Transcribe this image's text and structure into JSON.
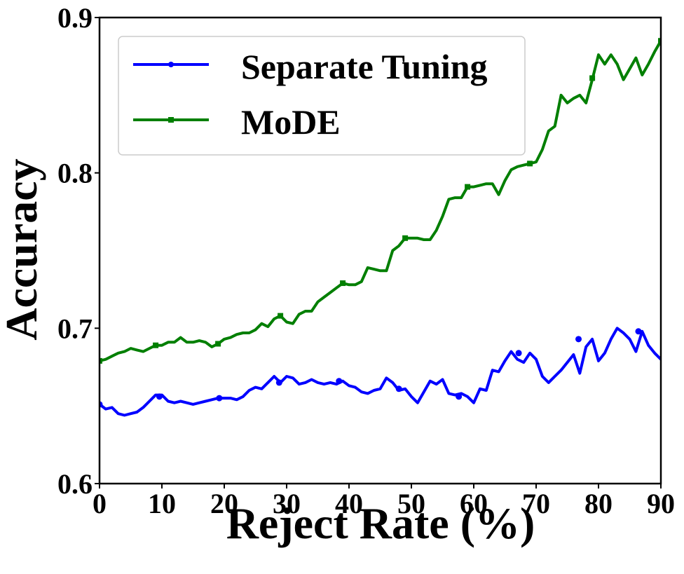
{
  "chart_data": {
    "type": "line",
    "title": "",
    "xlabel": "Reject Rate (%)",
    "ylabel": "Accuracy",
    "xlim": [
      0,
      90
    ],
    "ylim": [
      0.6,
      0.9
    ],
    "xticks": [
      0,
      10,
      20,
      30,
      40,
      50,
      60,
      70,
      80,
      90
    ],
    "xtick_labels": [
      "0",
      "10",
      "20",
      "30",
      "40",
      "50",
      "60",
      "70",
      "80",
      "90"
    ],
    "yticks": [
      0.6,
      0.7,
      0.8,
      0.9
    ],
    "ytick_labels": [
      "0.6",
      "0.7",
      "0.8",
      "0.9"
    ],
    "grid": false,
    "legend_position": "top-left",
    "series": [
      {
        "name": "Separate Tuning",
        "color": "#0000ff",
        "marker": "circle",
        "x": [
          0,
          1,
          2,
          3,
          4,
          5,
          6,
          7,
          8,
          9,
          10,
          11,
          12,
          13,
          14,
          15,
          16,
          17,
          18,
          19,
          20,
          21,
          22,
          23,
          24,
          25,
          26,
          27,
          28,
          29,
          30,
          31,
          32,
          33,
          34,
          35,
          36,
          37,
          38,
          39,
          40,
          41,
          42,
          43,
          44,
          45,
          46,
          47,
          48,
          49,
          50,
          51,
          52,
          53,
          54,
          55,
          56,
          57,
          58,
          59,
          60,
          61,
          62,
          63,
          64,
          65,
          66,
          67,
          68,
          69,
          70,
          71,
          72,
          73,
          74,
          75,
          76,
          77,
          78,
          79,
          80,
          81,
          82,
          83,
          84,
          85,
          86,
          87,
          88,
          89,
          90
        ],
        "values": [
          0.651,
          0.648,
          0.649,
          0.645,
          0.644,
          0.645,
          0.646,
          0.649,
          0.653,
          0.657,
          0.657,
          0.653,
          0.652,
          0.653,
          0.652,
          0.651,
          0.652,
          0.653,
          0.654,
          0.655,
          0.655,
          0.655,
          0.654,
          0.656,
          0.66,
          0.662,
          0.661,
          0.665,
          0.669,
          0.665,
          0.669,
          0.668,
          0.664,
          0.665,
          0.667,
          0.665,
          0.664,
          0.665,
          0.664,
          0.666,
          0.663,
          0.662,
          0.659,
          0.658,
          0.66,
          0.661,
          0.668,
          0.665,
          0.66,
          0.661,
          0.656,
          0.652,
          0.659,
          0.666,
          0.664,
          0.667,
          0.658,
          0.657,
          0.658,
          0.656,
          0.652,
          0.661,
          0.66,
          0.673,
          0.672,
          0.679,
          0.685,
          0.68,
          0.678,
          0.684,
          0.68,
          0.669,
          0.665,
          0.669,
          0.673,
          0.678,
          0.683,
          0.671,
          0.688,
          0.693,
          0.679,
          0.684,
          0.693,
          0.7,
          0.697,
          0.693,
          0.685,
          0.698,
          0.689,
          0.684,
          0.68
        ],
        "markers_x": [
          0,
          9.6,
          19.2,
          28.8,
          38.4,
          48,
          57.6,
          67.2,
          76.8,
          86.4
        ],
        "markers_y": [
          0.651,
          0.656,
          0.655,
          0.665,
          0.666,
          0.661,
          0.656,
          0.684,
          0.693,
          0.698
        ]
      },
      {
        "name": "MoDE",
        "color": "#007f00",
        "marker": "square",
        "x": [
          0,
          1,
          2,
          3,
          4,
          5,
          6,
          7,
          8,
          9,
          10,
          11,
          12,
          13,
          14,
          15,
          16,
          17,
          18,
          19,
          20,
          21,
          22,
          23,
          24,
          25,
          26,
          27,
          28,
          29,
          30,
          31,
          32,
          33,
          34,
          35,
          36,
          37,
          38,
          39,
          40,
          41,
          42,
          43,
          44,
          45,
          46,
          47,
          48,
          49,
          50,
          51,
          52,
          53,
          54,
          55,
          56,
          57,
          58,
          59,
          60,
          61,
          62,
          63,
          64,
          65,
          66,
          67,
          68,
          69,
          70,
          71,
          72,
          73,
          74,
          75,
          76,
          77,
          78,
          79,
          80,
          81,
          82,
          83,
          84,
          85,
          86,
          87,
          88,
          89,
          90
        ],
        "values": [
          0.679,
          0.68,
          0.682,
          0.684,
          0.685,
          0.687,
          0.686,
          0.685,
          0.687,
          0.689,
          0.689,
          0.691,
          0.691,
          0.694,
          0.691,
          0.691,
          0.692,
          0.691,
          0.688,
          0.69,
          0.693,
          0.694,
          0.696,
          0.697,
          0.697,
          0.699,
          0.703,
          0.701,
          0.706,
          0.708,
          0.704,
          0.703,
          0.709,
          0.711,
          0.711,
          0.717,
          0.72,
          0.723,
          0.726,
          0.729,
          0.728,
          0.728,
          0.73,
          0.739,
          0.738,
          0.737,
          0.737,
          0.75,
          0.753,
          0.758,
          0.758,
          0.758,
          0.757,
          0.757,
          0.763,
          0.772,
          0.783,
          0.784,
          0.784,
          0.791,
          0.791,
          0.792,
          0.793,
          0.793,
          0.786,
          0.795,
          0.802,
          0.804,
          0.805,
          0.806,
          0.807,
          0.815,
          0.827,
          0.83,
          0.85,
          0.845,
          0.848,
          0.85,
          0.845,
          0.86,
          0.876,
          0.87,
          0.876,
          0.87,
          0.86,
          0.867,
          0.874,
          0.863,
          0.87,
          0.878,
          0.885
        ],
        "markers_x": [
          0,
          9,
          19,
          29,
          39,
          49,
          59,
          69,
          79,
          90
        ],
        "markers_y": [
          0.679,
          0.689,
          0.69,
          0.708,
          0.729,
          0.758,
          0.791,
          0.806,
          0.861,
          0.885
        ]
      }
    ]
  }
}
